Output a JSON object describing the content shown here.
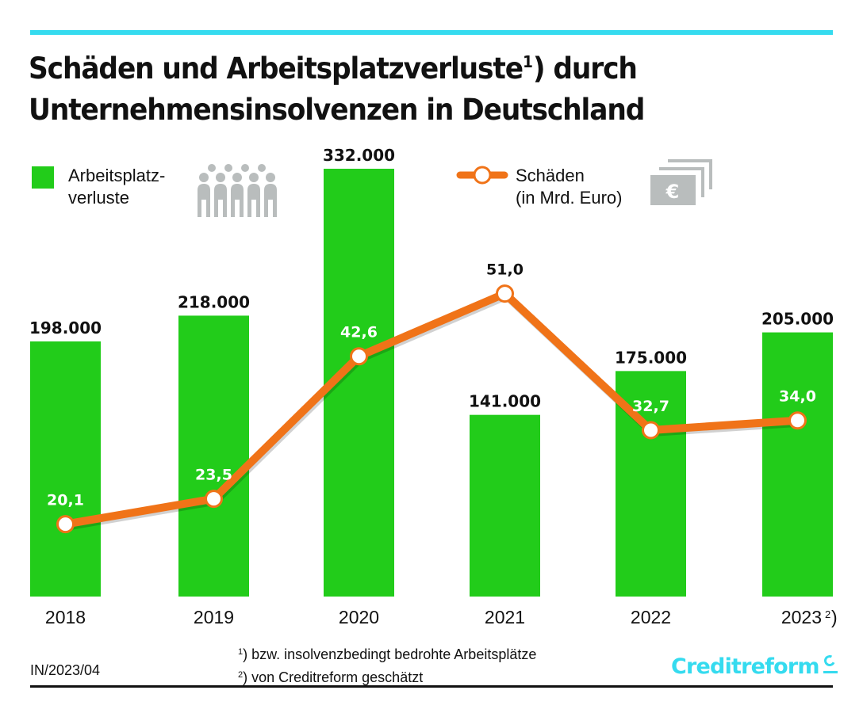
{
  "header": {
    "title_line1_a": "Schäden und Arbeitsplatzverluste",
    "title_sup": "1",
    "title_line1_b": ") durch",
    "title_line2": "Unternehmensinsolvenzen in Deutschland"
  },
  "legend": {
    "bars_label_line1": "Arbeitsplatz-",
    "bars_label_line2": "verluste",
    "bars_icon": "people-group-icon",
    "line_label_line1": "Schäden",
    "line_label_line2": "(in Mrd. Euro)",
    "line_icon": "euro-banknotes-icon"
  },
  "colors": {
    "accent_rule": "#35dbef",
    "bars": "#22cc1a",
    "line": "#f07318",
    "icons": "#b9bdbd",
    "logo": "#35dbef"
  },
  "chart_data": {
    "type": "bar",
    "title": "Schäden und Arbeitsplatzverluste 1) durch Unternehmensinsolvenzen in Deutschland",
    "categories": [
      "2018",
      "2019",
      "2020",
      "2021",
      "2022",
      "2023"
    ],
    "category_superscripts": [
      "",
      "",
      "",
      "",
      "",
      "2)"
    ],
    "series": [
      {
        "name": "Arbeitsplatzverluste",
        "type": "bar",
        "values": [
          198000,
          218000,
          332000,
          141000,
          175000,
          205000
        ],
        "labels": [
          "198.000",
          "218.000",
          "332.000",
          "141.000",
          "175.000",
          "205.000"
        ]
      },
      {
        "name": "Schäden (in Mrd. Euro)",
        "type": "line",
        "values": [
          20.1,
          23.5,
          42.6,
          51.0,
          32.7,
          34.0
        ],
        "labels": [
          "20,1",
          "23,5",
          "42,6",
          "51,0",
          "32,7",
          "34,0"
        ]
      }
    ],
    "xlabel": "",
    "ylabel": "",
    "ylim_bars": [
      0,
      332000
    ],
    "ylim_line": [
      0,
      51.0
    ],
    "grid": false,
    "legend_position": "top"
  },
  "footer": {
    "footnote1_mark": "1",
    "footnote1_text": ") bzw. insolvenzbedingt bedrohte Arbeitsplätze",
    "footnote2_mark": "2",
    "footnote2_text": ") von Creditreform geschätzt",
    "code": "IN/2023/04",
    "logo_text": "Creditreform",
    "logo_icon": "creditreform-c-icon"
  }
}
